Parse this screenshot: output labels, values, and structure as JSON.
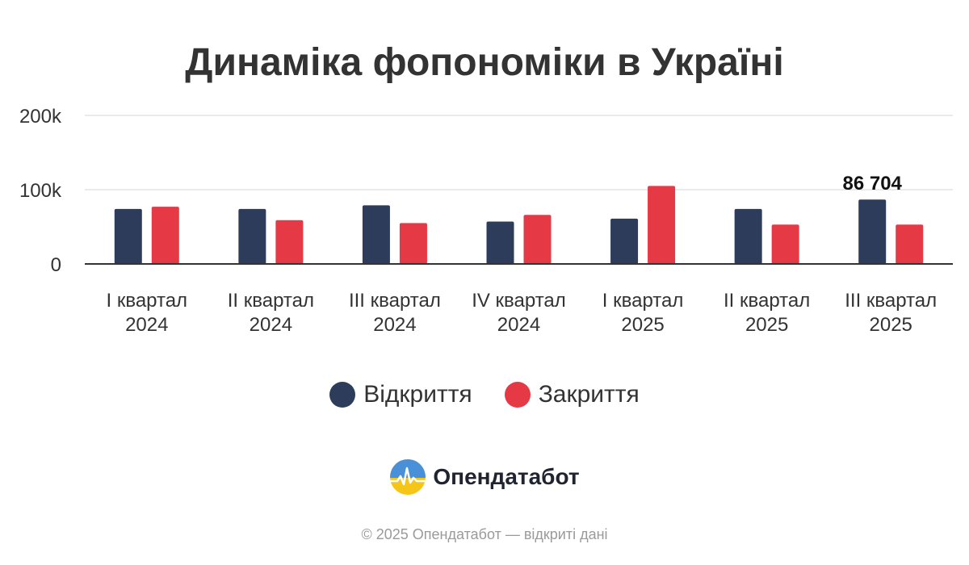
{
  "chart_data": {
    "type": "bar",
    "title": "Динаміка фопономіки в Україні",
    "categories": [
      [
        "I квартал",
        "2024"
      ],
      [
        "II квартал",
        "2024"
      ],
      [
        "III квартал",
        "2024"
      ],
      [
        "IV квартал",
        "2024"
      ],
      [
        "I квартал",
        "2025"
      ],
      [
        "II квартал",
        "2025"
      ],
      [
        "III квартал",
        "2025"
      ]
    ],
    "series": [
      {
        "name": "Відкриття",
        "color": "#2e3c5c",
        "values": [
          74000,
          74000,
          79000,
          57000,
          61000,
          74000,
          86704
        ]
      },
      {
        "name": "Закриття",
        "color": "#e63946",
        "values": [
          77000,
          59000,
          55000,
          66000,
          105000,
          53000,
          53000
        ]
      }
    ],
    "ylim": [
      0,
      200000
    ],
    "yticks": [
      0,
      100000,
      200000
    ],
    "ytick_labels": [
      "0",
      "100k",
      "200k"
    ],
    "grid": true,
    "annotations": [
      {
        "series": 0,
        "index": 6,
        "text": "86 704"
      }
    ],
    "legend_position": "bottom"
  },
  "brand": {
    "name": "Опендатабот",
    "logo_icon": "opendatabot-logo-icon"
  },
  "footer": {
    "copyright": "© 2025 Опендатабот — відкриті дані"
  }
}
